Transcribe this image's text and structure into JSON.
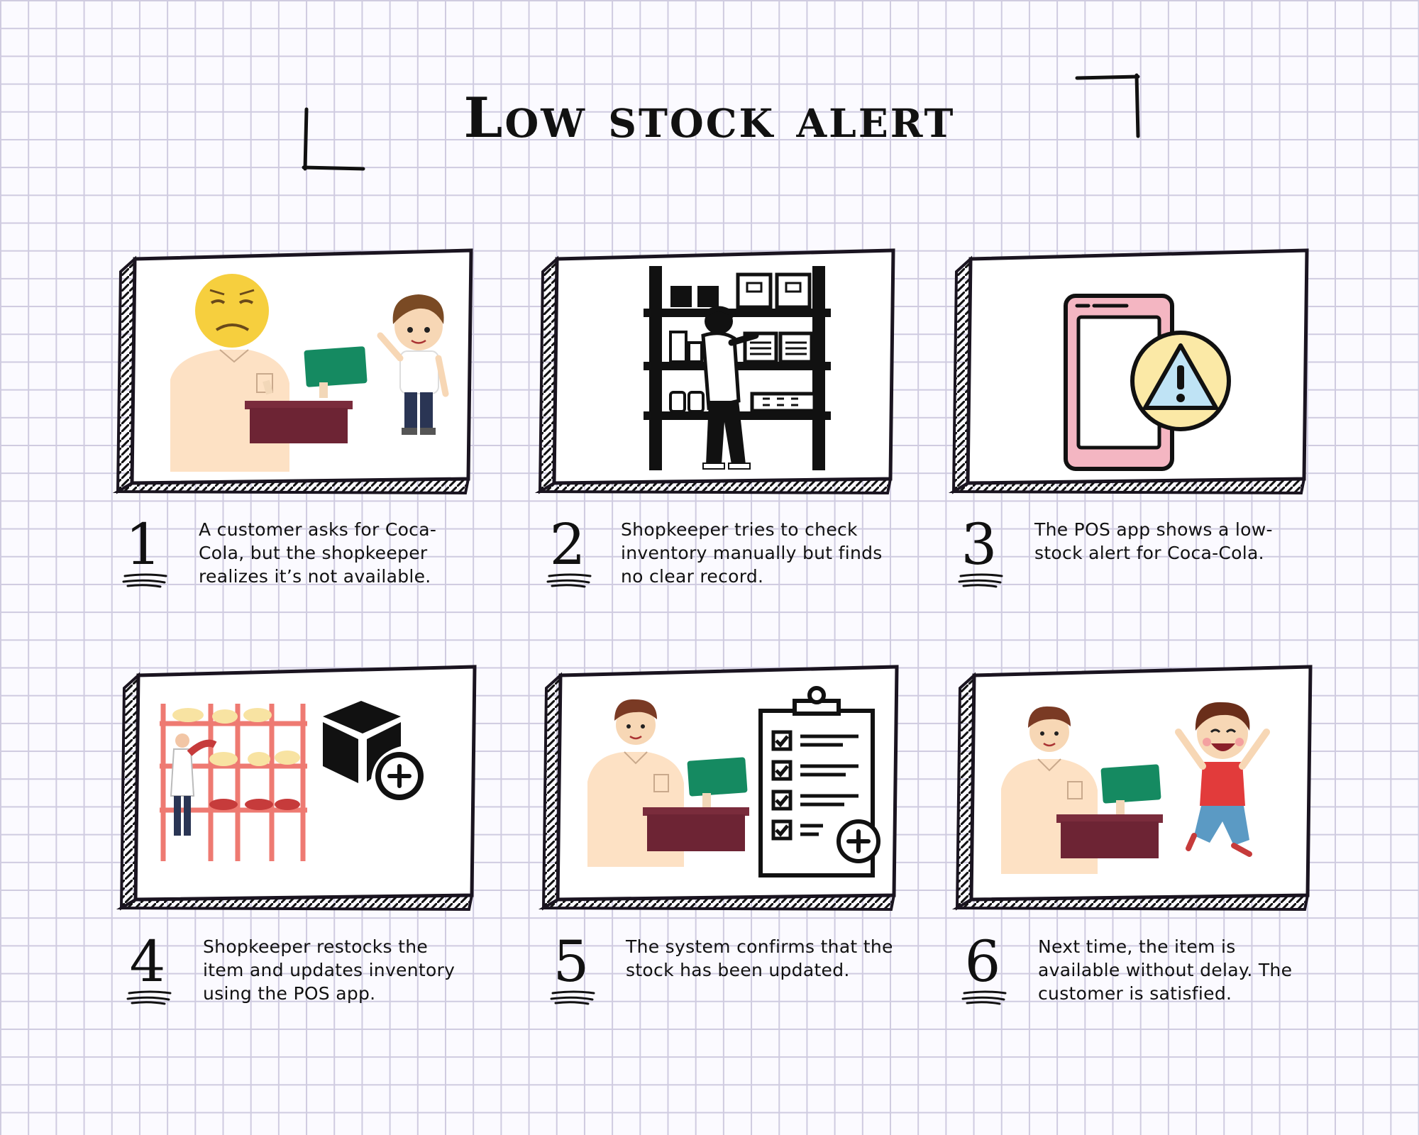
{
  "title": "Low stock alert",
  "steps": [
    {
      "number": "1",
      "caption": "A customer asks for Coca-Cola, but the shopkeeper realizes it’s not available.",
      "icon": "sad-customer-at-counter"
    },
    {
      "number": "2",
      "caption": "Shopkeeper tries to check inventory manually but finds no clear record.",
      "icon": "person-at-shelves"
    },
    {
      "number": "3",
      "caption": "The POS app shows a low-stock alert for Coca-Cola.",
      "icon": "phone-warning"
    },
    {
      "number": "4",
      "caption": "Shopkeeper restocks the item and updates inventory using the POS app.",
      "icon": "restock-shelves"
    },
    {
      "number": "5",
      "caption": "The system confirms that the stock has been updated.",
      "icon": "checklist-confirm"
    },
    {
      "number": "6",
      "caption": "Next time, the item is available without delay. The customer is satisfied.",
      "icon": "happy-customer"
    }
  ],
  "colors": {
    "ink": "#111111",
    "grid": "#cfcbe0",
    "shirt": "#fde1c4",
    "counter": "#6d2434",
    "monitor": "#158a61",
    "phone": "#f4b6c2",
    "warning": "#fbe9a6",
    "shelf_red": "#ee7a72",
    "kid_shirt": "#e23b3b"
  }
}
